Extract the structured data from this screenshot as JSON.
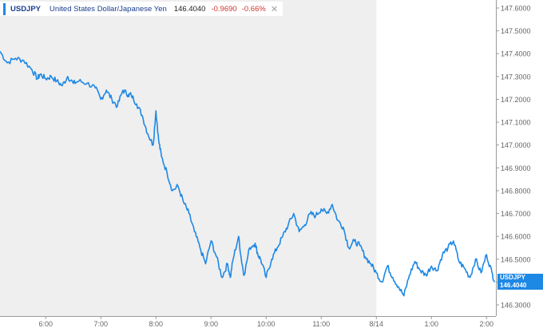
{
  "legend": {
    "symbol": "USDJPY",
    "name": "United States Dollar/Japanese Yen",
    "price": "146.4040",
    "change": "-0.9690",
    "change_pct": "-0.66%",
    "close_glyph": "✕"
  },
  "last_badge": {
    "symbol": "USDJPY",
    "price": "146.4040"
  },
  "colors": {
    "line": "#1e88e5",
    "previous_session_shade": "#efefef",
    "axis": "#666666",
    "negative": "#d0342c"
  },
  "chart_data": {
    "type": "line",
    "x_unit": "hours",
    "x_range": [
      5.17,
      14.17
    ],
    "ylim": [
      146.25,
      147.64
    ],
    "y_ticks": [
      "146.3000",
      "146.4000",
      "146.5000",
      "146.6000",
      "146.7000",
      "146.8000",
      "146.9000",
      "147.0000",
      "147.1000",
      "147.2000",
      "147.3000",
      "147.4000",
      "147.5000",
      "147.6000"
    ],
    "y_tick_values": [
      146.3,
      146.4,
      146.5,
      146.6,
      146.7,
      146.8,
      146.9,
      147.0,
      147.1,
      147.2,
      147.3,
      147.4,
      147.5,
      147.6
    ],
    "x_ticks": [
      {
        "label": "6:00",
        "x": 6
      },
      {
        "label": "7:00",
        "x": 7
      },
      {
        "label": "8:00",
        "x": 8
      },
      {
        "label": "9:00",
        "x": 9
      },
      {
        "label": "10:00",
        "x": 10
      },
      {
        "label": "11:00",
        "x": 11
      },
      {
        "label": "8/14",
        "x": 12
      },
      {
        "label": "1:00",
        "x": 13
      },
      {
        "label": "2:00",
        "x": 14
      }
    ],
    "shaded_region": [
      5.17,
      12.0
    ],
    "y_axis_side": "right",
    "grid": false,
    "series": [
      {
        "x": [
          5.17,
          5.3,
          5.45,
          5.6,
          5.75,
          5.85,
          5.9,
          6.0,
          6.1,
          6.2,
          6.3,
          6.4,
          6.5,
          6.6,
          6.75,
          6.9,
          7.0,
          7.1,
          7.2,
          7.3,
          7.4,
          7.5,
          7.55,
          7.65,
          7.75,
          7.85,
          7.95,
          8.0,
          8.05,
          8.1,
          8.2,
          8.3,
          8.4,
          8.5,
          8.6,
          8.7,
          8.8,
          8.9,
          9.0,
          9.1,
          9.2,
          9.3,
          9.35,
          9.4,
          9.5,
          9.55,
          9.6,
          9.7,
          9.8,
          9.85,
          9.9,
          10.0,
          10.1,
          10.2,
          10.3,
          10.4,
          10.5,
          10.6,
          10.7,
          10.8,
          10.9,
          11.0,
          11.1,
          11.2,
          11.3,
          11.4,
          11.5,
          11.6,
          11.7,
          11.8,
          11.9,
          12.0,
          12.1,
          12.2,
          12.3,
          12.4,
          12.5,
          12.6,
          12.7,
          12.8,
          12.9,
          13.0,
          13.1,
          13.2,
          13.3,
          13.4,
          13.5,
          13.6,
          13.7,
          13.8,
          13.9,
          14.0,
          14.1,
          14.15
        ],
        "y": [
          147.41,
          147.36,
          147.38,
          147.37,
          147.33,
          147.29,
          147.31,
          147.29,
          147.3,
          147.28,
          147.26,
          147.3,
          147.27,
          147.28,
          147.27,
          147.25,
          147.2,
          147.24,
          147.2,
          147.17,
          147.24,
          147.22,
          147.22,
          147.18,
          147.13,
          147.05,
          147.0,
          147.15,
          147.02,
          146.95,
          146.88,
          146.8,
          146.82,
          146.75,
          146.7,
          146.62,
          146.55,
          146.48,
          146.58,
          146.51,
          146.42,
          146.48,
          146.42,
          146.5,
          146.6,
          146.5,
          146.43,
          146.55,
          146.57,
          146.52,
          146.5,
          146.42,
          146.5,
          146.55,
          146.6,
          146.65,
          146.7,
          146.62,
          146.65,
          146.7,
          146.69,
          146.72,
          146.7,
          146.74,
          146.67,
          146.64,
          146.55,
          146.58,
          146.56,
          146.51,
          146.48,
          146.44,
          146.4,
          146.47,
          146.42,
          146.38,
          146.34,
          146.43,
          146.49,
          146.45,
          146.43,
          146.47,
          146.45,
          146.52,
          146.55,
          146.58,
          146.49,
          146.46,
          146.42,
          146.5,
          146.44,
          146.52,
          146.44,
          146.4
        ]
      }
    ]
  }
}
